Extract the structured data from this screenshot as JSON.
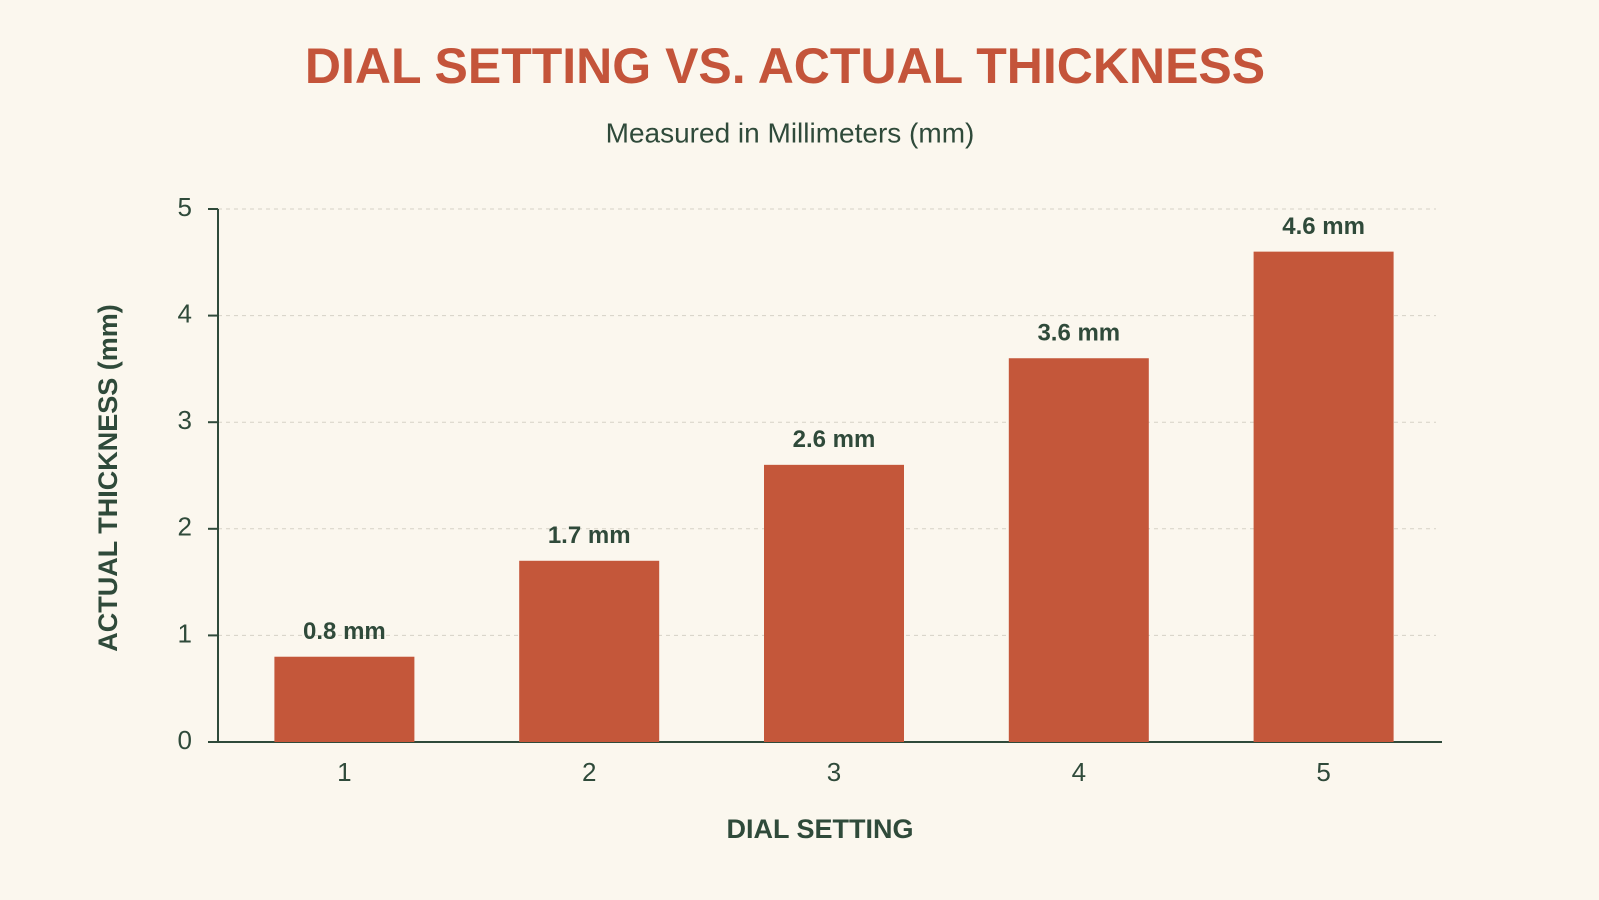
{
  "chart_data": {
    "type": "bar",
    "title": "DIAL SETTING VS. ACTUAL THICKNESS",
    "subtitle": "Measured in Millimeters (mm)",
    "x_label": "DIAL SETTING",
    "y_label": "ACTUAL THICKNESS (mm)",
    "categories": [
      "1",
      "2",
      "3",
      "4",
      "5"
    ],
    "values": [
      0.8,
      1.7,
      2.6,
      3.6,
      4.6
    ],
    "value_labels": [
      "0.8 mm",
      "1.7 mm",
      "2.6 mm",
      "3.6 mm",
      "4.6 mm"
    ],
    "color": "#c4573a",
    "ylim": [
      0,
      5
    ],
    "yticks": [
      0,
      1,
      2,
      3,
      4,
      5
    ],
    "grid": true
  }
}
